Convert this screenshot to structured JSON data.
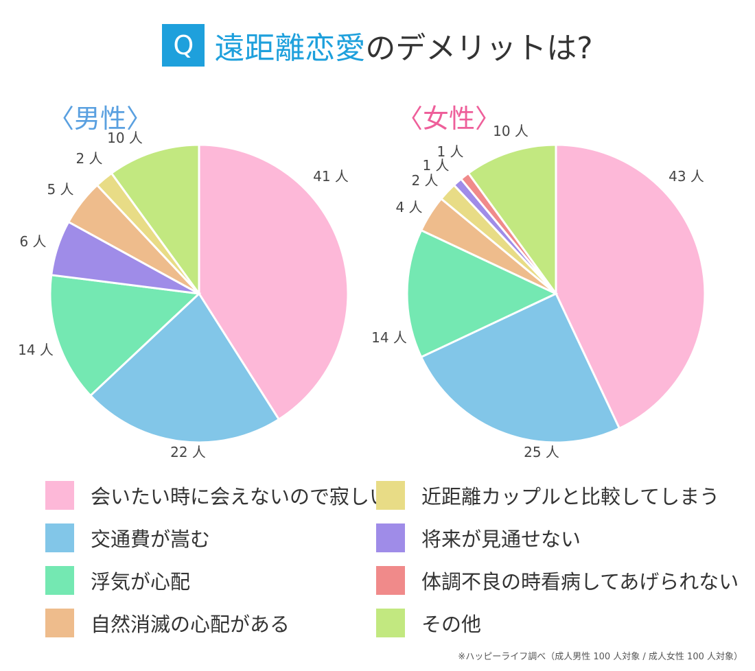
{
  "title": {
    "badge": "Q",
    "accent": "遠距離恋愛",
    "rest": "のデメリットは?"
  },
  "footnote": "※ハッピーライフ調べ（成人男性 100 人対象 / 成人女性 100 人対象）",
  "chart_data": [
    {
      "type": "pie",
      "title": "〈男性〉",
      "unit": "人",
      "categories": [
        "会いたい時に会えないので寂しい",
        "交通費が嵩む",
        "浮気が心配",
        "自然消滅の心配がある",
        "近距離カップルと比較してしまう",
        "将来が見通せない",
        "体調不良の時看病してあげられない",
        "その他"
      ],
      "values": [
        41,
        22,
        14,
        5,
        2,
        6,
        0,
        10
      ],
      "slice_order": [
        0,
        1,
        2,
        5,
        3,
        4,
        6,
        7
      ],
      "labels": [
        "41 人",
        "22 人",
        "14 人",
        "6 人",
        "5 人",
        "2 人",
        "10 人"
      ]
    },
    {
      "type": "pie",
      "title": "〈女性〉",
      "unit": "人",
      "categories": [
        "会いたい時に会えないので寂しい",
        "交通費が嵩む",
        "浮気が心配",
        "自然消滅の心配がある",
        "近距離カップルと比較してしまう",
        "将来が見通せない",
        "体調不良の時看病してあげられない",
        "その他"
      ],
      "values": [
        43,
        25,
        14,
        4,
        2,
        1,
        1,
        10
      ],
      "slice_order": [
        0,
        1,
        2,
        3,
        4,
        5,
        6,
        7
      ],
      "labels": [
        "43 人",
        "25 人",
        "14 人",
        "4 人",
        "2 人",
        "1 人",
        "1 人",
        "10 人"
      ]
    }
  ],
  "legend": [
    {
      "label": "会いたい時に会えないので寂しい",
      "color": "#fdb8d8"
    },
    {
      "label": "交通費が嵩む",
      "color": "#82c6e8"
    },
    {
      "label": "浮気が心配",
      "color": "#74e8b2"
    },
    {
      "label": "自然消滅の心配がある",
      "color": "#eebc8c"
    },
    {
      "label": "近距離カップルと比較してしまう",
      "color": "#e8dc86"
    },
    {
      "label": "将来が見通せない",
      "color": "#9f8ce8"
    },
    {
      "label": "体調不良の時看病してあげられない",
      "color": "#f08a8a"
    },
    {
      "label": "その他",
      "color": "#c2e880"
    }
  ]
}
